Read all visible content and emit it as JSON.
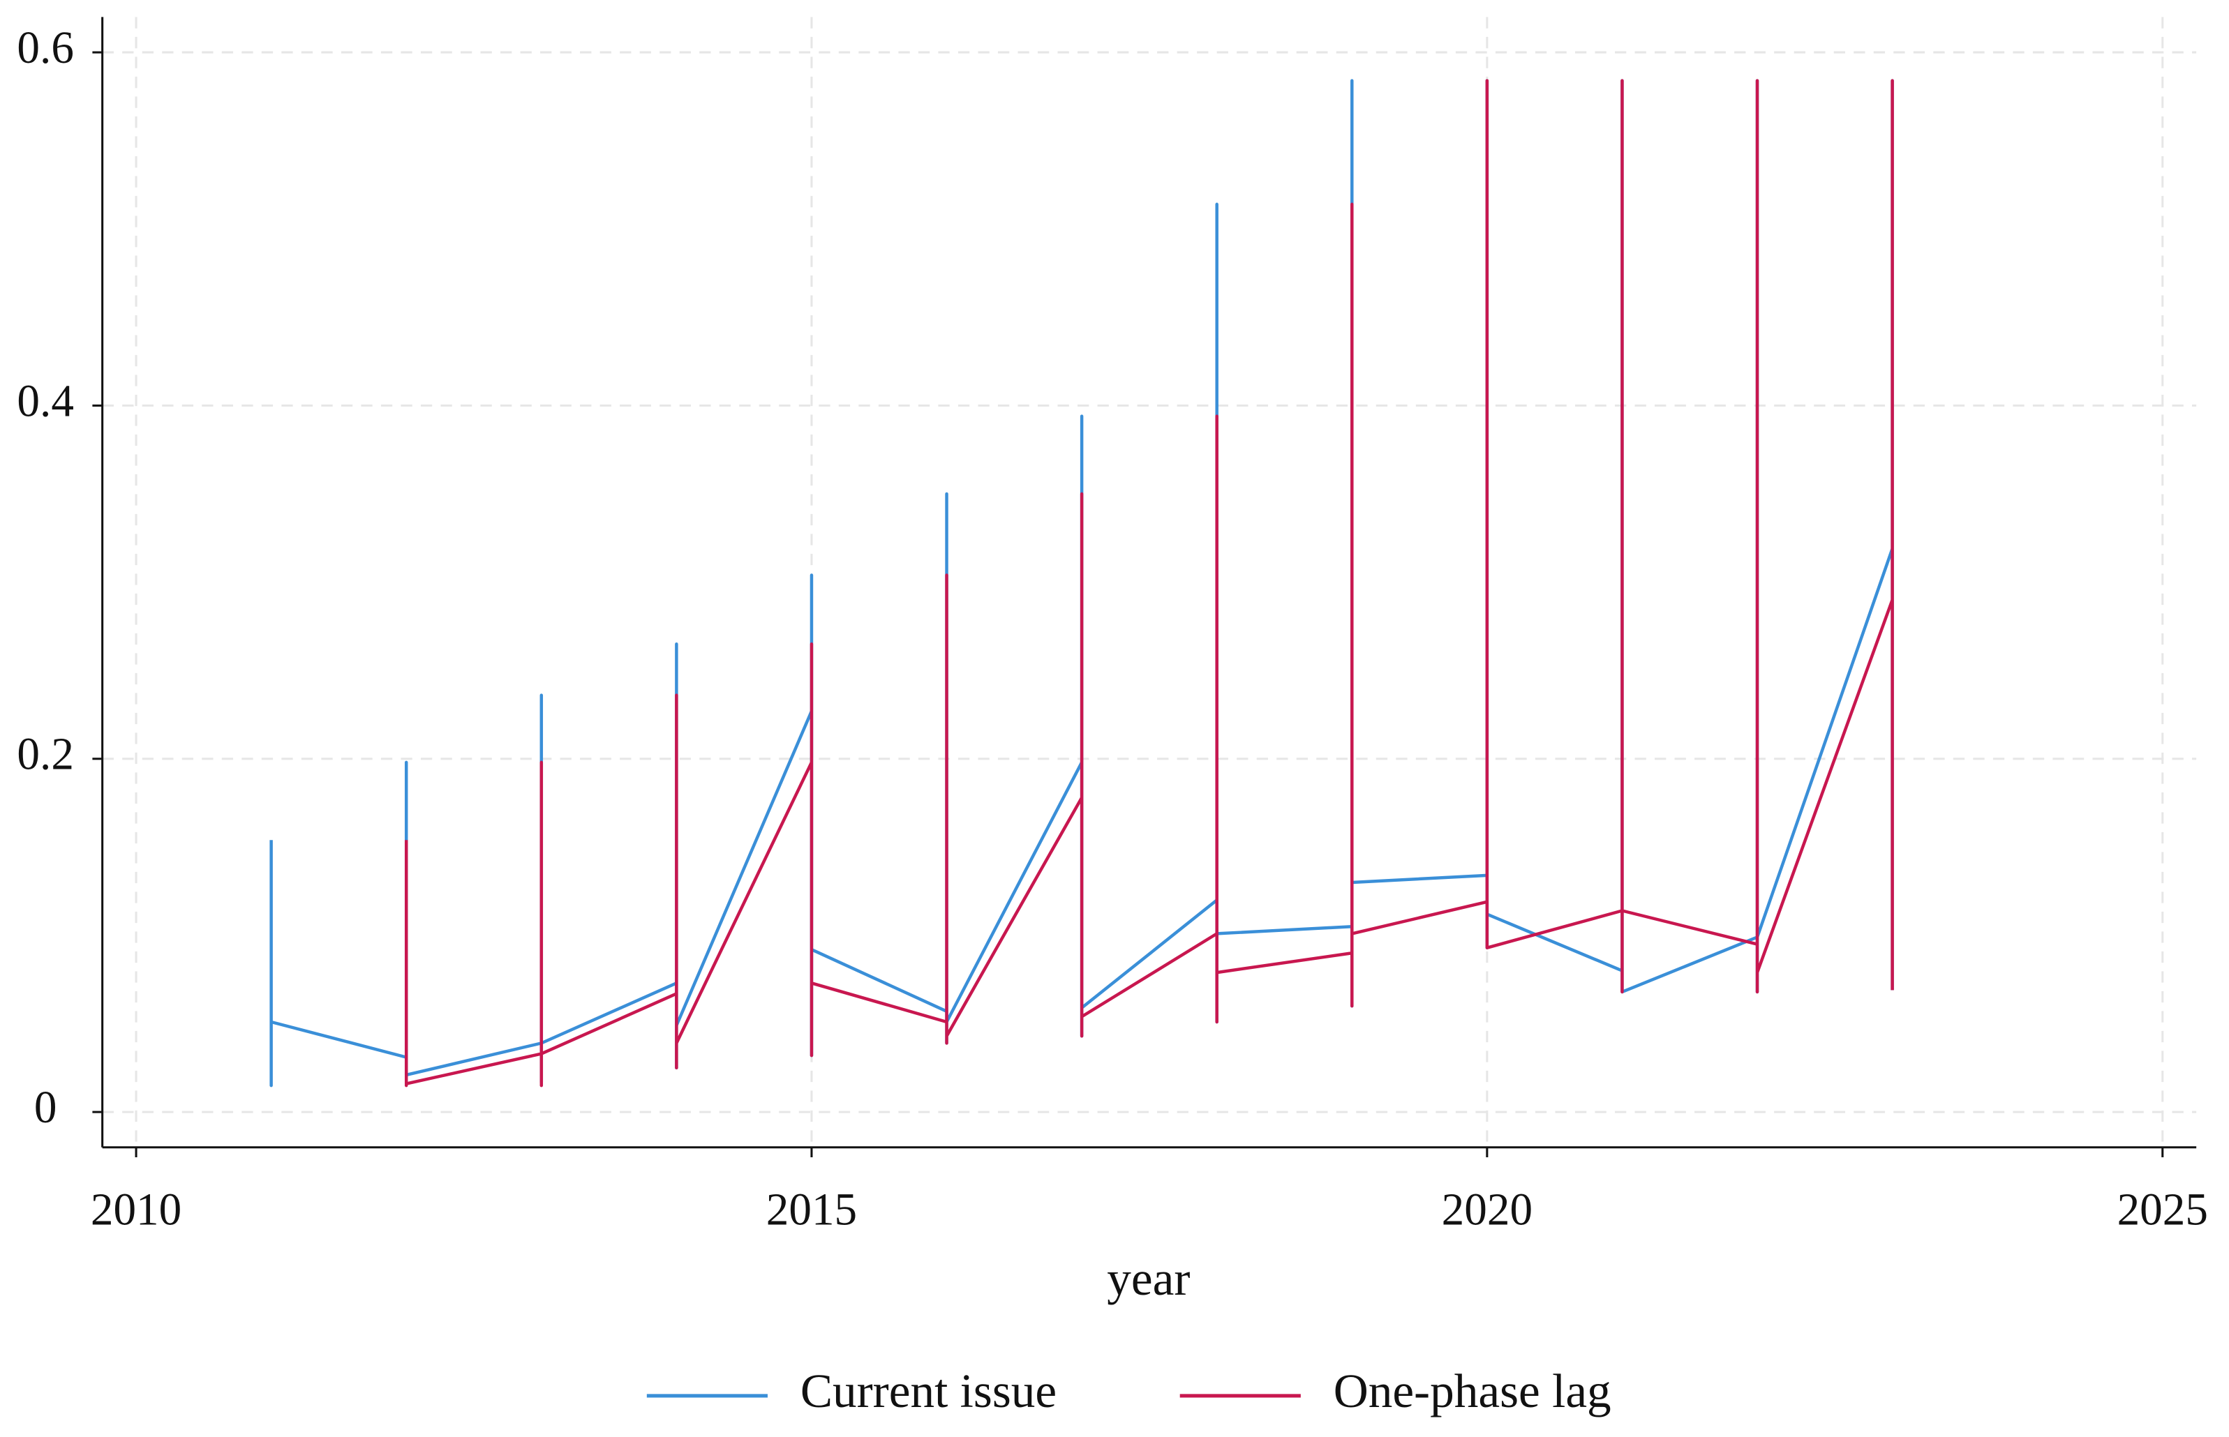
{
  "chart_data": {
    "type": "line",
    "x_label": "year",
    "xlim": [
      2009.75,
      2025.25
    ],
    "xticks": [
      2010,
      2015,
      2020,
      2025
    ],
    "ylim": [
      -0.02,
      0.62
    ],
    "yticks": [
      0,
      0.2,
      0.4,
      0.6
    ],
    "grid": true,
    "legend": "bottom",
    "series": [
      {
        "name": "Current issue",
        "color": "#3a8fd8",
        "x": [
          2011,
          2011,
          2011,
          2012,
          2012,
          2012,
          2013,
          2013,
          2013,
          2013,
          2014,
          2014,
          2014,
          2014,
          2015,
          2015,
          2015,
          2015,
          2016,
          2016,
          2016,
          2016,
          2017,
          2017,
          2017,
          2017,
          2018,
          2018,
          2018,
          2018,
          2019,
          2019,
          2019,
          2019,
          2020,
          2020,
          2020,
          2020,
          2021,
          2021,
          2021,
          2022,
          2022,
          2022,
          2022,
          2023,
          2023,
          2023
        ],
        "values": [
          0.154,
          0.015,
          0.051,
          0.031,
          0.198,
          0.021,
          0.039,
          0.236,
          0.017,
          0.039,
          0.073,
          0.265,
          0.025,
          0.049,
          0.227,
          0.304,
          0.032,
          0.092,
          0.057,
          0.35,
          0.039,
          0.051,
          0.198,
          0.394,
          0.043,
          0.059,
          0.12,
          0.514,
          0.051,
          0.101,
          0.105,
          0.584,
          0.06,
          0.13,
          0.134,
          0.584,
          0.093,
          0.112,
          0.08,
          0.584,
          0.068,
          0.099,
          0.584,
          0.068,
          0.099,
          0.319,
          0.584,
          0.069
        ]
      },
      {
        "name": "One-phase lag",
        "color": "#c8174f",
        "x": [
          2012,
          2012,
          2012,
          2013,
          2013,
          2013,
          2013,
          2014,
          2014,
          2014,
          2014,
          2015,
          2015,
          2015,
          2015,
          2016,
          2016,
          2016,
          2016,
          2017,
          2017,
          2017,
          2017,
          2018,
          2018,
          2018,
          2018,
          2019,
          2019,
          2019,
          2019,
          2020,
          2020,
          2020,
          2021,
          2021,
          2021,
          2021,
          2022,
          2022,
          2022,
          2022,
          2023,
          2023,
          2023
        ],
        "values": [
          0.154,
          0.015,
          0.016,
          0.033,
          0.198,
          0.015,
          0.033,
          0.067,
          0.236,
          0.025,
          0.039,
          0.198,
          0.265,
          0.032,
          0.073,
          0.051,
          0.304,
          0.039,
          0.043,
          0.178,
          0.35,
          0.043,
          0.054,
          0.101,
          0.394,
          0.051,
          0.079,
          0.09,
          0.514,
          0.06,
          0.101,
          0.119,
          0.584,
          0.093,
          0.114,
          0.584,
          0.068,
          0.114,
          0.095,
          0.584,
          0.068,
          0.079,
          0.29,
          0.584,
          0.069
        ]
      }
    ]
  }
}
